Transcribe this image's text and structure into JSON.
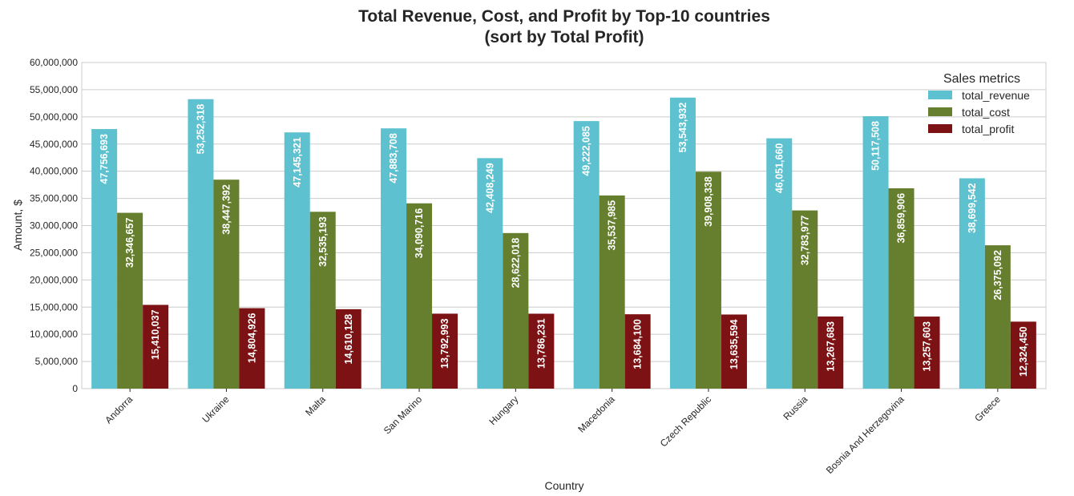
{
  "chart_data": {
    "type": "bar",
    "title": [
      "Total Revenue, Cost, and Profit by Top-10 countries",
      "(sort by Total Profit)"
    ],
    "xlabel": "Country",
    "ylabel": "Amount, $",
    "ylim": [
      0,
      60000000
    ],
    "yticks": [
      0,
      5000000,
      10000000,
      15000000,
      20000000,
      25000000,
      30000000,
      35000000,
      40000000,
      45000000,
      50000000,
      55000000,
      60000000
    ],
    "ytick_labels": [
      "0",
      "5,000,000",
      "10,000,000",
      "15,000,000",
      "20,000,000",
      "25,000,000",
      "30,000,000",
      "35,000,000",
      "40,000,000",
      "45,000,000",
      "50,000,000",
      "55,000,000",
      "60,000,000"
    ],
    "grid": true,
    "legend": {
      "title": "Sales metrics",
      "placement": "top-right"
    },
    "categories": [
      "Andorra",
      "Ukraine",
      "Malta",
      "San Marino",
      "Hungary",
      "Macedonia",
      "Czech Republic",
      "Russia",
      "Bosnia And Herzegovina",
      "Greece"
    ],
    "series": [
      {
        "name": "total_revenue",
        "color": "#5ec1d0",
        "values": [
          47756693,
          53252318,
          47145321,
          47883708,
          42408249,
          49222085,
          53543932,
          46051660,
          50117508,
          38699542
        ],
        "labels": [
          "47,756,693",
          "53,252,318",
          "47,145,321",
          "47,883,708",
          "42,408,249",
          "49,222,085",
          "53,543,932",
          "46,051,660",
          "50,117,508",
          "38,699,542"
        ]
      },
      {
        "name": "total_cost",
        "color": "#667f2e",
        "values": [
          32346657,
          38447392,
          32535193,
          34090716,
          28622018,
          35537985,
          39908338,
          32783977,
          36859906,
          26375092
        ],
        "labels": [
          "32,346,657",
          "38,447,392",
          "32,535,193",
          "34,090,716",
          "28,622,018",
          "35,537,985",
          "39,908,338",
          "32,783,977",
          "36,859,906",
          "26,375,092"
        ]
      },
      {
        "name": "total_profit",
        "color": "#7d1214",
        "values": [
          15410037,
          14804926,
          14610128,
          13792993,
          13786231,
          13684100,
          13635594,
          13267683,
          13257603,
          12324450
        ],
        "labels": [
          "15,410,037",
          "14,804,926",
          "14,610,128",
          "13,792,993",
          "13,786,231",
          "13,684,100",
          "13,635,594",
          "13,267,683",
          "13,257,603",
          "12,324,450"
        ]
      }
    ]
  }
}
